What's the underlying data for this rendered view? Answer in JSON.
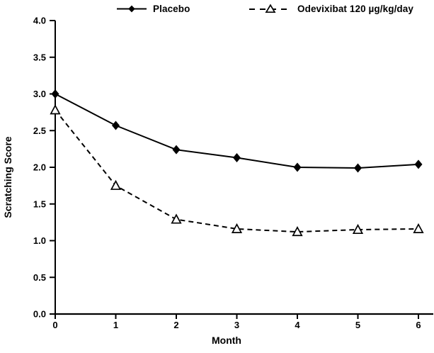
{
  "figure": {
    "background": "#ffffff",
    "ink_color": "#000000"
  },
  "legend": {
    "entries": [
      {
        "label": "Placebo",
        "marker": "filled-diamond",
        "line": "solid"
      },
      {
        "label": "Odevixibat 120 µg/kg/day",
        "marker": "open-triangle",
        "line": "dashed"
      }
    ]
  },
  "chart_data": {
    "type": "line",
    "title": "",
    "xlabel": "Month",
    "ylabel": "Scratching Score",
    "x": [
      0,
      1,
      2,
      3,
      4,
      5,
      6
    ],
    "series": [
      {
        "name": "Placebo",
        "marker": "filled-diamond",
        "line_style": "solid",
        "color": "#000000",
        "values": [
          3.0,
          2.57,
          2.24,
          2.13,
          2.0,
          1.99,
          2.04
        ]
      },
      {
        "name": "Odevixibat 120 µg/kg/day",
        "marker": "open-triangle",
        "line_style": "dashed",
        "color": "#000000",
        "values": [
          2.78,
          1.75,
          1.29,
          1.16,
          1.12,
          1.15,
          1.16
        ]
      }
    ],
    "xlim": [
      0,
      6
    ],
    "ylim": [
      0.0,
      4.0
    ],
    "ytick_step": 0.5,
    "xticks": [
      0,
      1,
      2,
      3,
      4,
      5,
      6
    ],
    "ytick_labels": [
      "0.0",
      "0.5",
      "1.0",
      "1.5",
      "2.0",
      "2.5",
      "3.0",
      "3.5",
      "4.0"
    ],
    "grid": false,
    "legend_position": "top"
  }
}
